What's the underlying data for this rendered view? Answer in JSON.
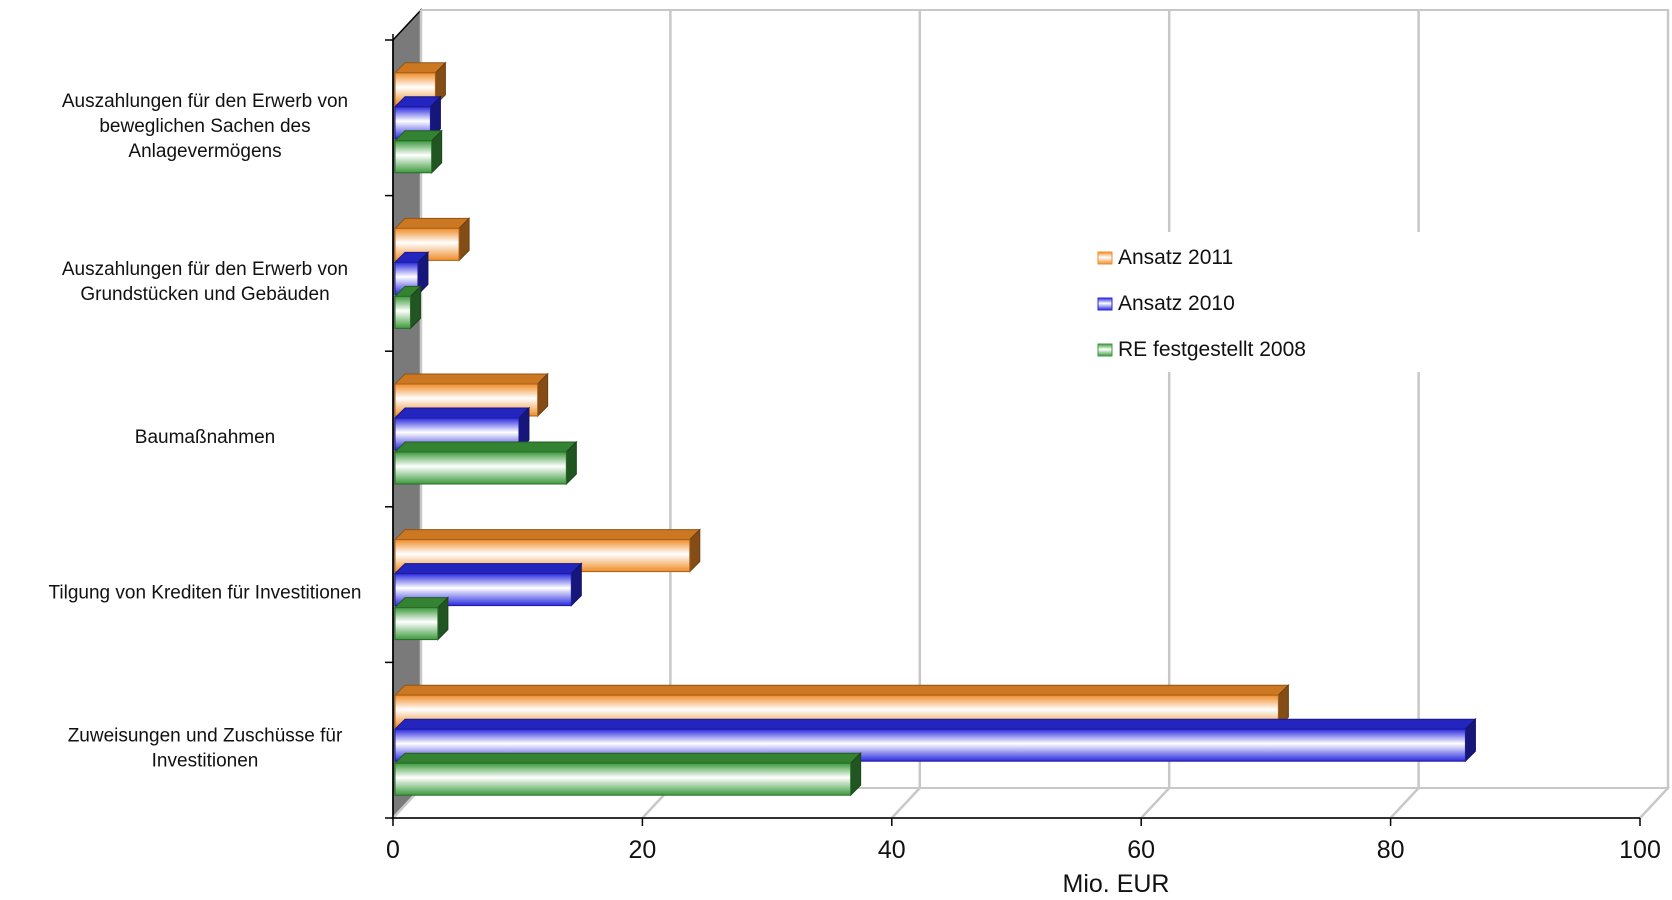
{
  "chart_data": {
    "type": "bar",
    "orientation": "horizontal",
    "three_d": true,
    "grid": true,
    "legend_position": "right",
    "title": "",
    "xlabel": "Mio. EUR",
    "ylabel": "",
    "xlim": [
      0,
      100
    ],
    "x_ticks": [
      "0",
      "20",
      "40",
      "60",
      "80",
      "100"
    ],
    "categories": [
      [
        "Auszahlungen für den Erwerb von",
        "beweglichen Sachen des",
        "Anlagevermögens"
      ],
      [
        "Auszahlungen für den Erwerb von",
        "Grundstücken und Gebäuden"
      ],
      [
        "Baumaßnahmen"
      ],
      [
        "Tilgung von Krediten für Investitionen"
      ],
      [
        "Zuweisungen und Zuschüsse für",
        "Investitionen"
      ]
    ],
    "series": [
      {
        "name": "Ansatz 2011",
        "color": "#f08c28",
        "values": [
          3.4,
          5.3,
          11.6,
          23.8,
          71.0
        ]
      },
      {
        "name": "Ansatz 2010",
        "color": "#2a2ae0",
        "values": [
          3.0,
          2.0,
          10.1,
          14.3,
          86.0
        ]
      },
      {
        "name": "RE festgestellt 2008",
        "color": "#3c9a3c",
        "values": [
          3.1,
          1.4,
          13.9,
          3.6,
          36.7
        ]
      }
    ]
  }
}
